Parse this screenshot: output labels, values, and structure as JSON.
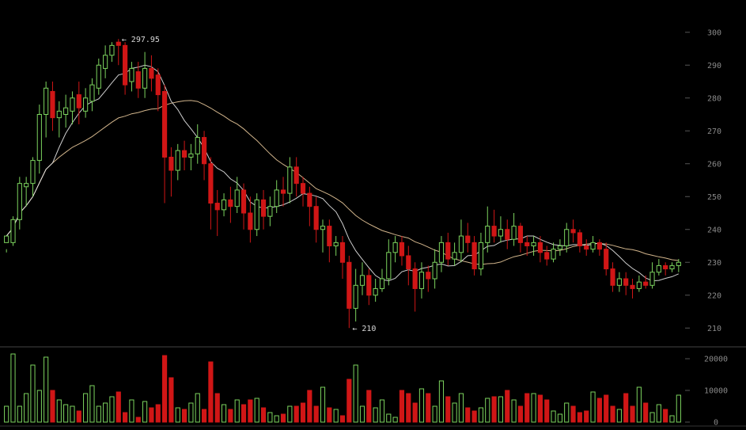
{
  "chart_data": [
    {
      "type": "candlestick",
      "ylim": [
        205,
        305
      ],
      "y_ticks": [
        {
          "value": 300,
          "label": "300"
        },
        {
          "value": 290,
          "label": "290"
        },
        {
          "value": 280,
          "label": "280"
        },
        {
          "value": 270,
          "label": "270"
        },
        {
          "value": 260,
          "label": "260"
        },
        {
          "value": 250,
          "label": "250"
        },
        {
          "value": 240,
          "label": "240"
        },
        {
          "value": 230,
          "label": "230"
        },
        {
          "value": 220,
          "label": "220"
        },
        {
          "value": 210,
          "label": "210"
        }
      ],
      "grid": false,
      "colors": {
        "up": "#7cd35e",
        "down": "#d01616",
        "ma_short": "#e6e6e6",
        "ma_long": "#e8c89a"
      },
      "candles": [
        [
          236,
          238,
          234,
          233
        ],
        [
          236,
          243,
          244,
          235
        ],
        [
          243,
          254,
          256,
          240
        ],
        [
          253,
          254,
          256,
          247
        ],
        [
          254,
          261,
          262,
          250
        ],
        [
          261,
          275,
          278,
          257
        ],
        [
          275,
          283,
          285,
          268
        ],
        [
          282,
          274,
          285,
          270
        ],
        [
          274,
          276,
          279,
          268
        ],
        [
          275,
          277,
          281,
          271
        ],
        [
          276,
          280,
          282,
          272
        ],
        [
          281,
          277,
          285,
          272
        ],
        [
          276,
          280,
          283,
          274
        ],
        [
          279,
          284,
          286,
          276
        ],
        [
          283,
          290,
          292,
          281
        ],
        [
          289,
          293,
          296,
          286
        ],
        [
          293,
          296,
          297,
          291
        ],
        [
          297,
          296,
          297.95,
          290
        ],
        [
          296,
          284,
          297,
          281
        ],
        [
          285,
          289,
          291,
          282
        ],
        [
          288,
          283,
          291,
          280
        ],
        [
          283,
          289,
          294,
          280
        ],
        [
          289,
          286,
          293,
          282
        ],
        [
          287,
          281,
          289,
          276
        ],
        [
          282,
          262,
          284,
          248
        ],
        [
          262,
          258,
          265,
          250
        ],
        [
          258,
          264,
          266,
          255
        ],
        [
          264,
          262,
          267,
          258
        ],
        [
          262,
          263,
          266,
          258
        ],
        [
          263,
          268,
          272,
          260
        ],
        [
          268,
          260,
          270,
          255
        ],
        [
          260,
          248,
          262,
          240
        ],
        [
          248,
          246,
          252,
          238
        ],
        [
          246,
          249,
          251,
          244
        ],
        [
          249,
          247,
          253,
          242
        ],
        [
          247,
          252,
          256,
          245
        ],
        [
          252,
          245,
          254,
          240
        ],
        [
          245,
          240,
          250,
          236
        ],
        [
          240,
          249,
          251,
          238
        ],
        [
          249,
          244,
          252,
          240
        ],
        [
          244,
          247,
          250,
          241
        ],
        [
          247,
          252,
          255,
          245
        ],
        [
          252,
          251,
          256,
          247
        ],
        [
          251,
          259,
          262,
          248
        ],
        [
          259,
          254,
          262,
          250
        ],
        [
          254,
          251,
          256,
          247
        ],
        [
          251,
          247,
          253,
          241
        ],
        [
          247,
          240,
          250,
          236
        ],
        [
          240,
          241,
          243,
          233
        ],
        [
          241,
          235,
          243,
          230
        ],
        [
          235,
          236,
          238,
          232
        ],
        [
          236,
          230,
          238,
          225
        ],
        [
          230,
          216,
          232,
          210
        ],
        [
          216,
          223,
          228,
          212
        ],
        [
          223,
          226,
          230,
          220
        ],
        [
          226,
          220,
          228,
          217
        ],
        [
          220,
          222,
          225,
          218
        ],
        [
          222,
          225,
          228,
          221
        ],
        [
          225,
          233,
          237,
          223
        ],
        [
          233,
          236,
          238,
          230
        ],
        [
          236,
          232,
          238,
          229
        ],
        [
          232,
          228,
          235,
          223
        ],
        [
          228,
          222,
          230,
          215
        ],
        [
          222,
          227,
          230,
          219
        ],
        [
          227,
          225,
          229,
          221
        ],
        [
          225,
          230,
          234,
          222
        ],
        [
          230,
          236,
          238,
          227
        ],
        [
          236,
          231,
          239,
          229
        ],
        [
          231,
          233,
          236,
          229
        ],
        [
          233,
          238,
          243,
          230
        ],
        [
          238,
          236,
          242,
          233
        ],
        [
          236,
          228,
          238,
          226
        ],
        [
          228,
          236,
          239,
          226
        ],
        [
          236,
          241,
          247,
          233
        ],
        [
          241,
          238,
          246,
          236
        ],
        [
          238,
          240,
          244,
          236
        ],
        [
          240,
          237,
          243,
          234
        ],
        [
          237,
          241,
          245,
          235
        ],
        [
          241,
          236,
          242,
          233
        ],
        [
          236,
          235,
          238,
          232
        ],
        [
          235,
          236,
          238,
          232
        ],
        [
          236,
          233,
          238,
          230
        ],
        [
          233,
          231,
          235,
          229
        ],
        [
          231,
          234,
          236,
          230
        ],
        [
          234,
          235,
          237,
          232
        ],
        [
          235,
          240,
          242,
          233
        ],
        [
          240,
          239,
          243,
          236
        ],
        [
          239,
          235,
          240,
          233
        ],
        [
          235,
          234,
          237,
          232
        ],
        [
          234,
          236,
          238,
          233
        ],
        [
          236,
          234,
          237,
          232
        ],
        [
          234,
          228,
          236,
          226
        ],
        [
          228,
          223,
          230,
          221
        ],
        [
          223,
          225,
          227,
          221
        ],
        [
          225,
          223,
          227,
          220
        ],
        [
          223,
          222,
          225,
          219
        ],
        [
          222,
          224,
          226,
          221
        ],
        [
          224,
          223,
          226,
          222
        ],
        [
          223,
          227,
          230,
          222
        ],
        [
          227,
          229,
          231,
          226
        ],
        [
          229,
          228,
          230,
          226
        ],
        [
          228,
          229,
          230,
          227
        ],
        [
          229,
          230,
          231,
          227
        ]
      ],
      "volume": {
        "ylim": [
          0,
          22000
        ],
        "y_ticks": [
          {
            "value": 20000,
            "label": "20000"
          },
          {
            "value": 10000,
            "label": "10000"
          },
          {
            "value": 0,
            "label": "0"
          }
        ],
        "values": [
          5000,
          21500,
          5000,
          9000,
          18000,
          10000,
          20500,
          10000,
          7000,
          5500,
          5000,
          3500,
          9000,
          11500,
          5000,
          6000,
          8000,
          9500,
          3000,
          7000,
          1500,
          6500,
          4500,
          5500,
          21000,
          14000,
          4500,
          4000,
          6000,
          9000,
          4000,
          19000,
          9000,
          5500,
          4000,
          7000,
          5500,
          7000,
          7500,
          4500,
          3000,
          2000,
          2500,
          5000,
          5000,
          6000,
          10000,
          5000,
          11000,
          4500,
          4000,
          2000,
          13500,
          18000,
          5000,
          10000,
          4500,
          7000,
          2500,
          1500,
          10000,
          9000,
          6000,
          10500,
          9000,
          5000,
          13000,
          8000,
          6000,
          9000,
          4500,
          3500,
          4500,
          7500,
          8000,
          8000,
          10000,
          7000,
          5000,
          9000,
          9000,
          8500,
          7000,
          3500,
          2500,
          6000,
          5000,
          3000,
          3500,
          9500,
          7500,
          8500,
          5000,
          4000,
          9000,
          5000,
          11000,
          6000,
          3000,
          5500,
          4000,
          2000,
          8500
        ]
      },
      "annotations": [
        {
          "label": "297.95",
          "candle": 17,
          "value": 297.95
        },
        {
          "label": "210",
          "candle": 52,
          "value": 210
        }
      ]
    }
  ]
}
